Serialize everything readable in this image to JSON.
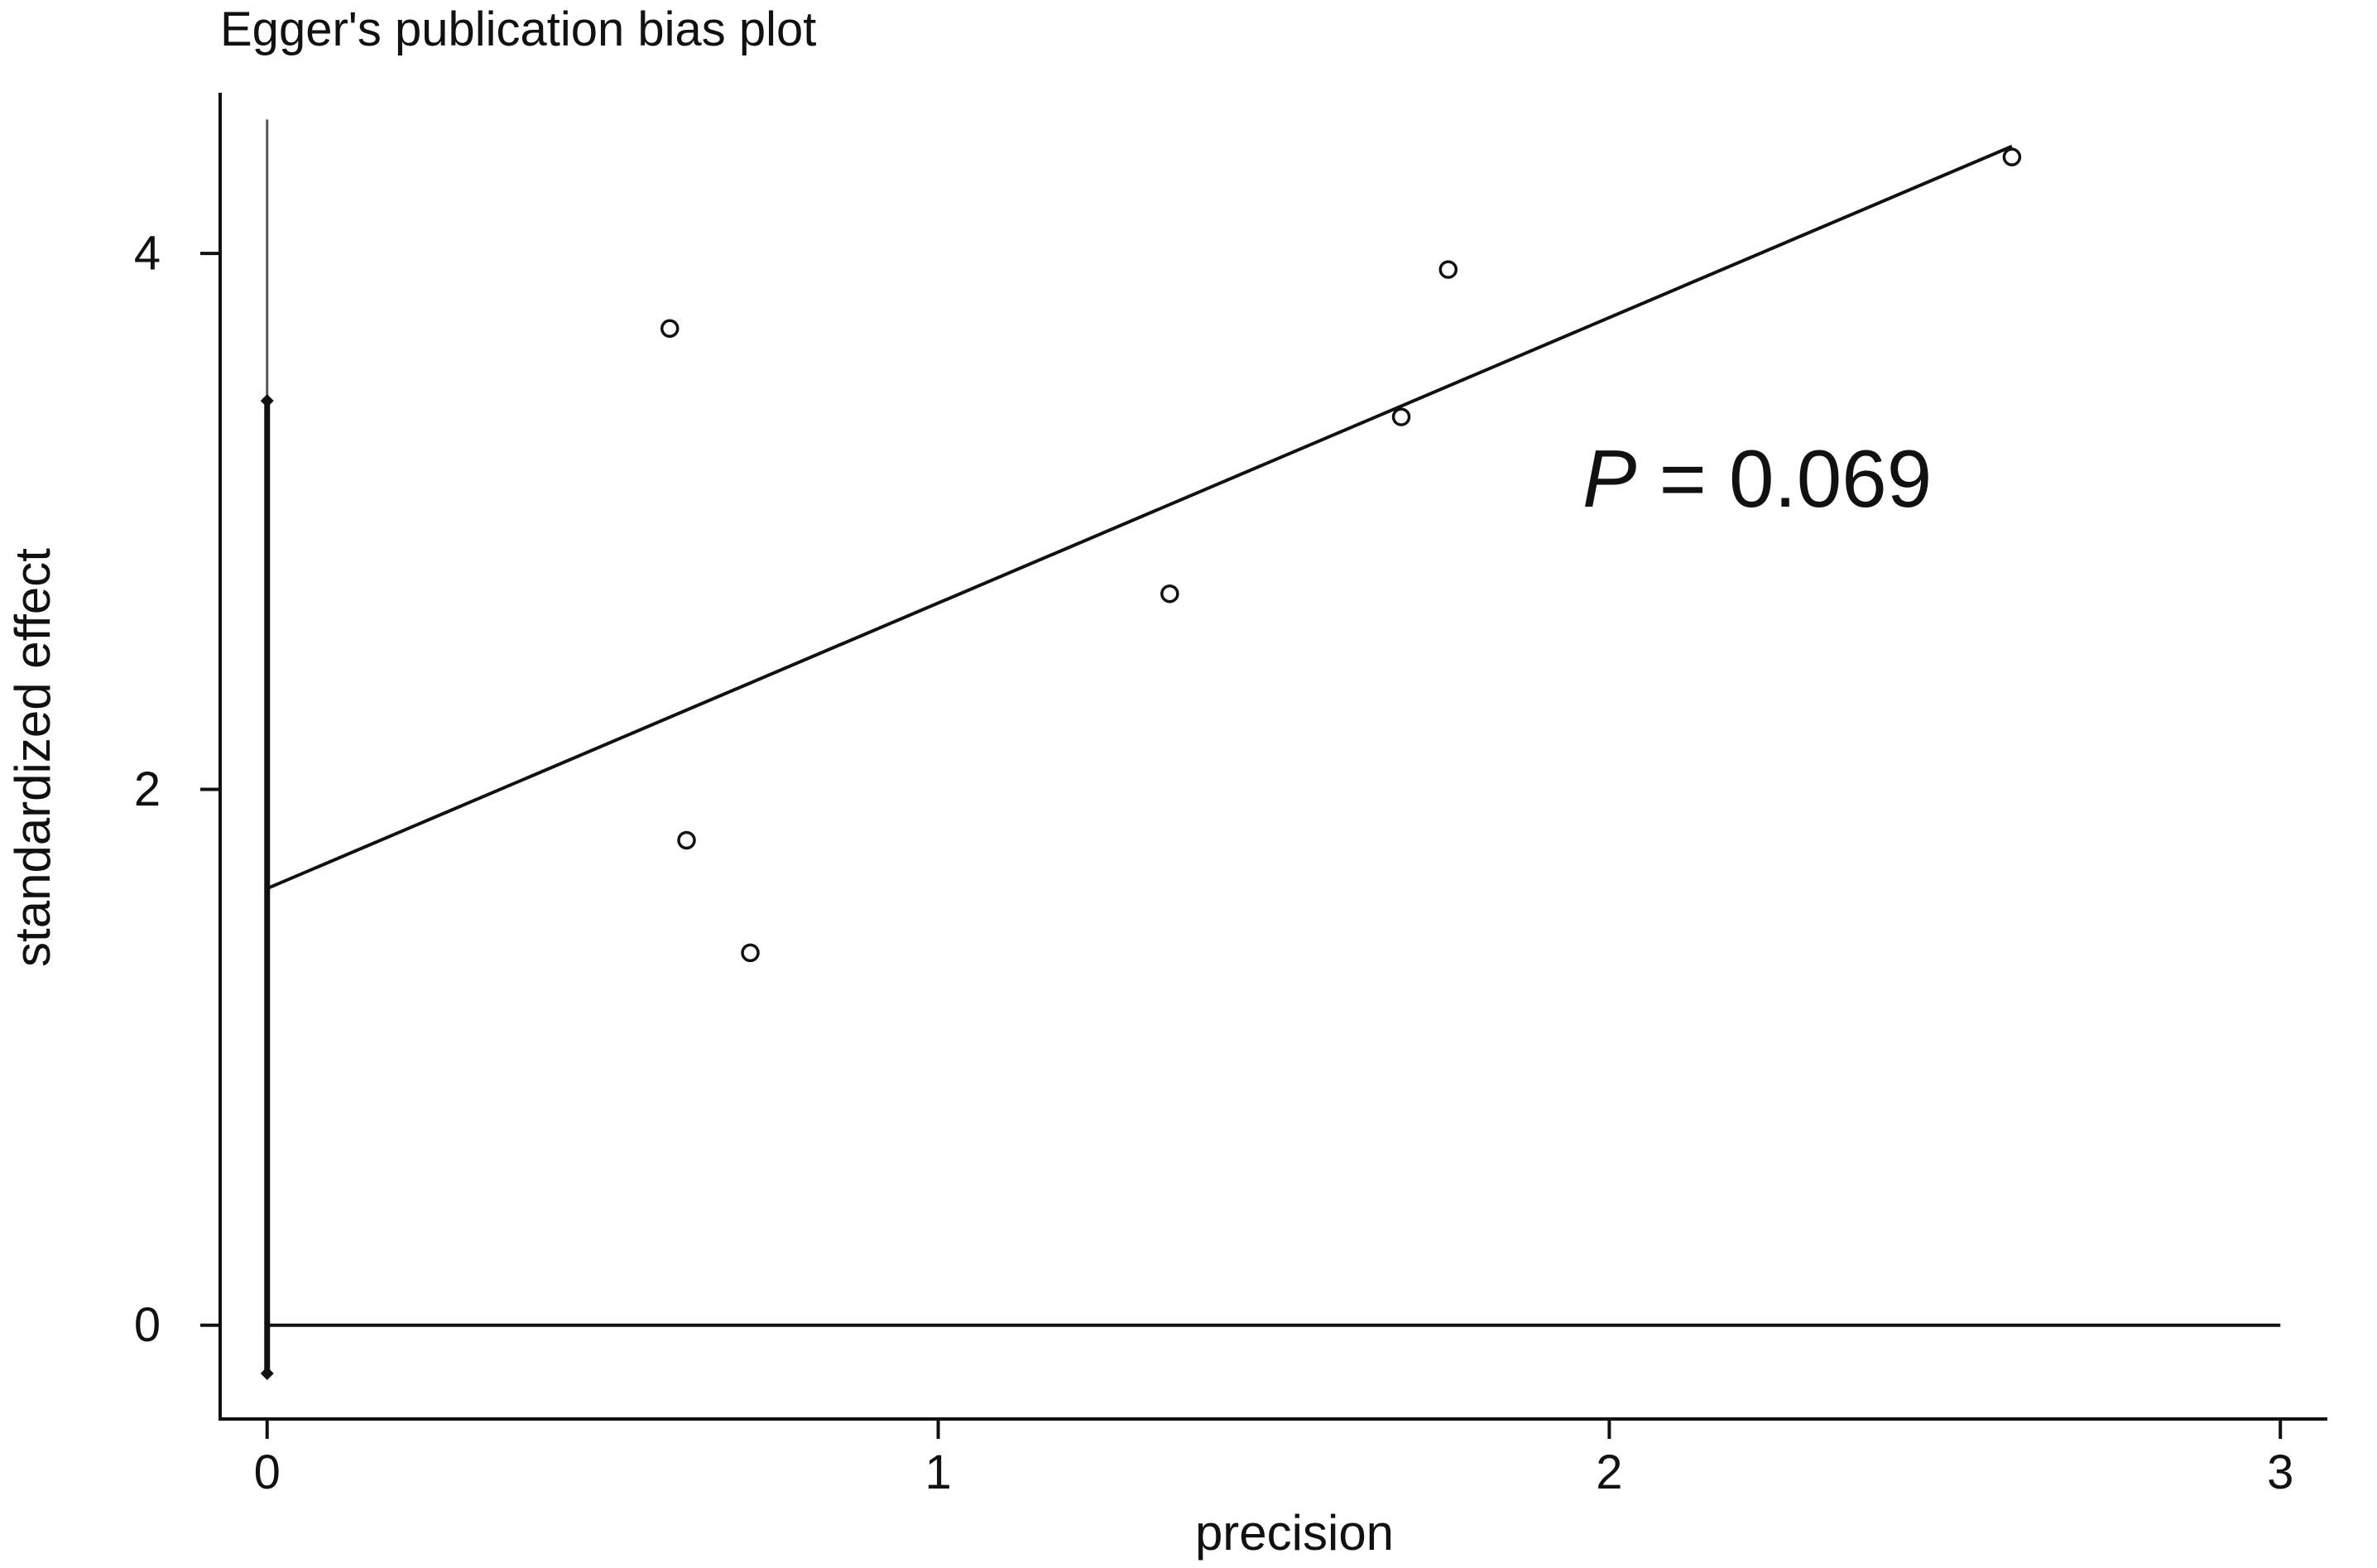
{
  "chart_data": {
    "type": "scatter",
    "title": "Egger's publication bias plot",
    "xlabel": "precision",
    "ylabel": "standardized effect",
    "xlim": [
      -0.07,
      3.07
    ],
    "ylim": [
      -0.35,
      4.6
    ],
    "x_ticks": [
      0,
      1,
      2,
      3
    ],
    "y_ticks": [
      0,
      2,
      4
    ],
    "grid": false,
    "points": [
      {
        "x": 0.6,
        "y": 3.72
      },
      {
        "x": 0.625,
        "y": 1.81
      },
      {
        "x": 0.72,
        "y": 1.39
      },
      {
        "x": 1.345,
        "y": 2.73
      },
      {
        "x": 1.69,
        "y": 3.39
      },
      {
        "x": 1.76,
        "y": 3.94
      },
      {
        "x": 2.6,
        "y": 4.36
      }
    ],
    "regression_line": {
      "x": [
        0,
        2.6
      ],
      "y": [
        1.63,
        4.4
      ]
    },
    "intercept_ci": {
      "x": 0,
      "lower": -0.18,
      "upper": 3.45,
      "whisker_top": 4.5
    },
    "zero_line": {
      "y": 0,
      "x": [
        0,
        3
      ]
    },
    "annotation": {
      "label": "P",
      "text": " = 0.069",
      "x": 1.96,
      "y": 3.16
    }
  }
}
